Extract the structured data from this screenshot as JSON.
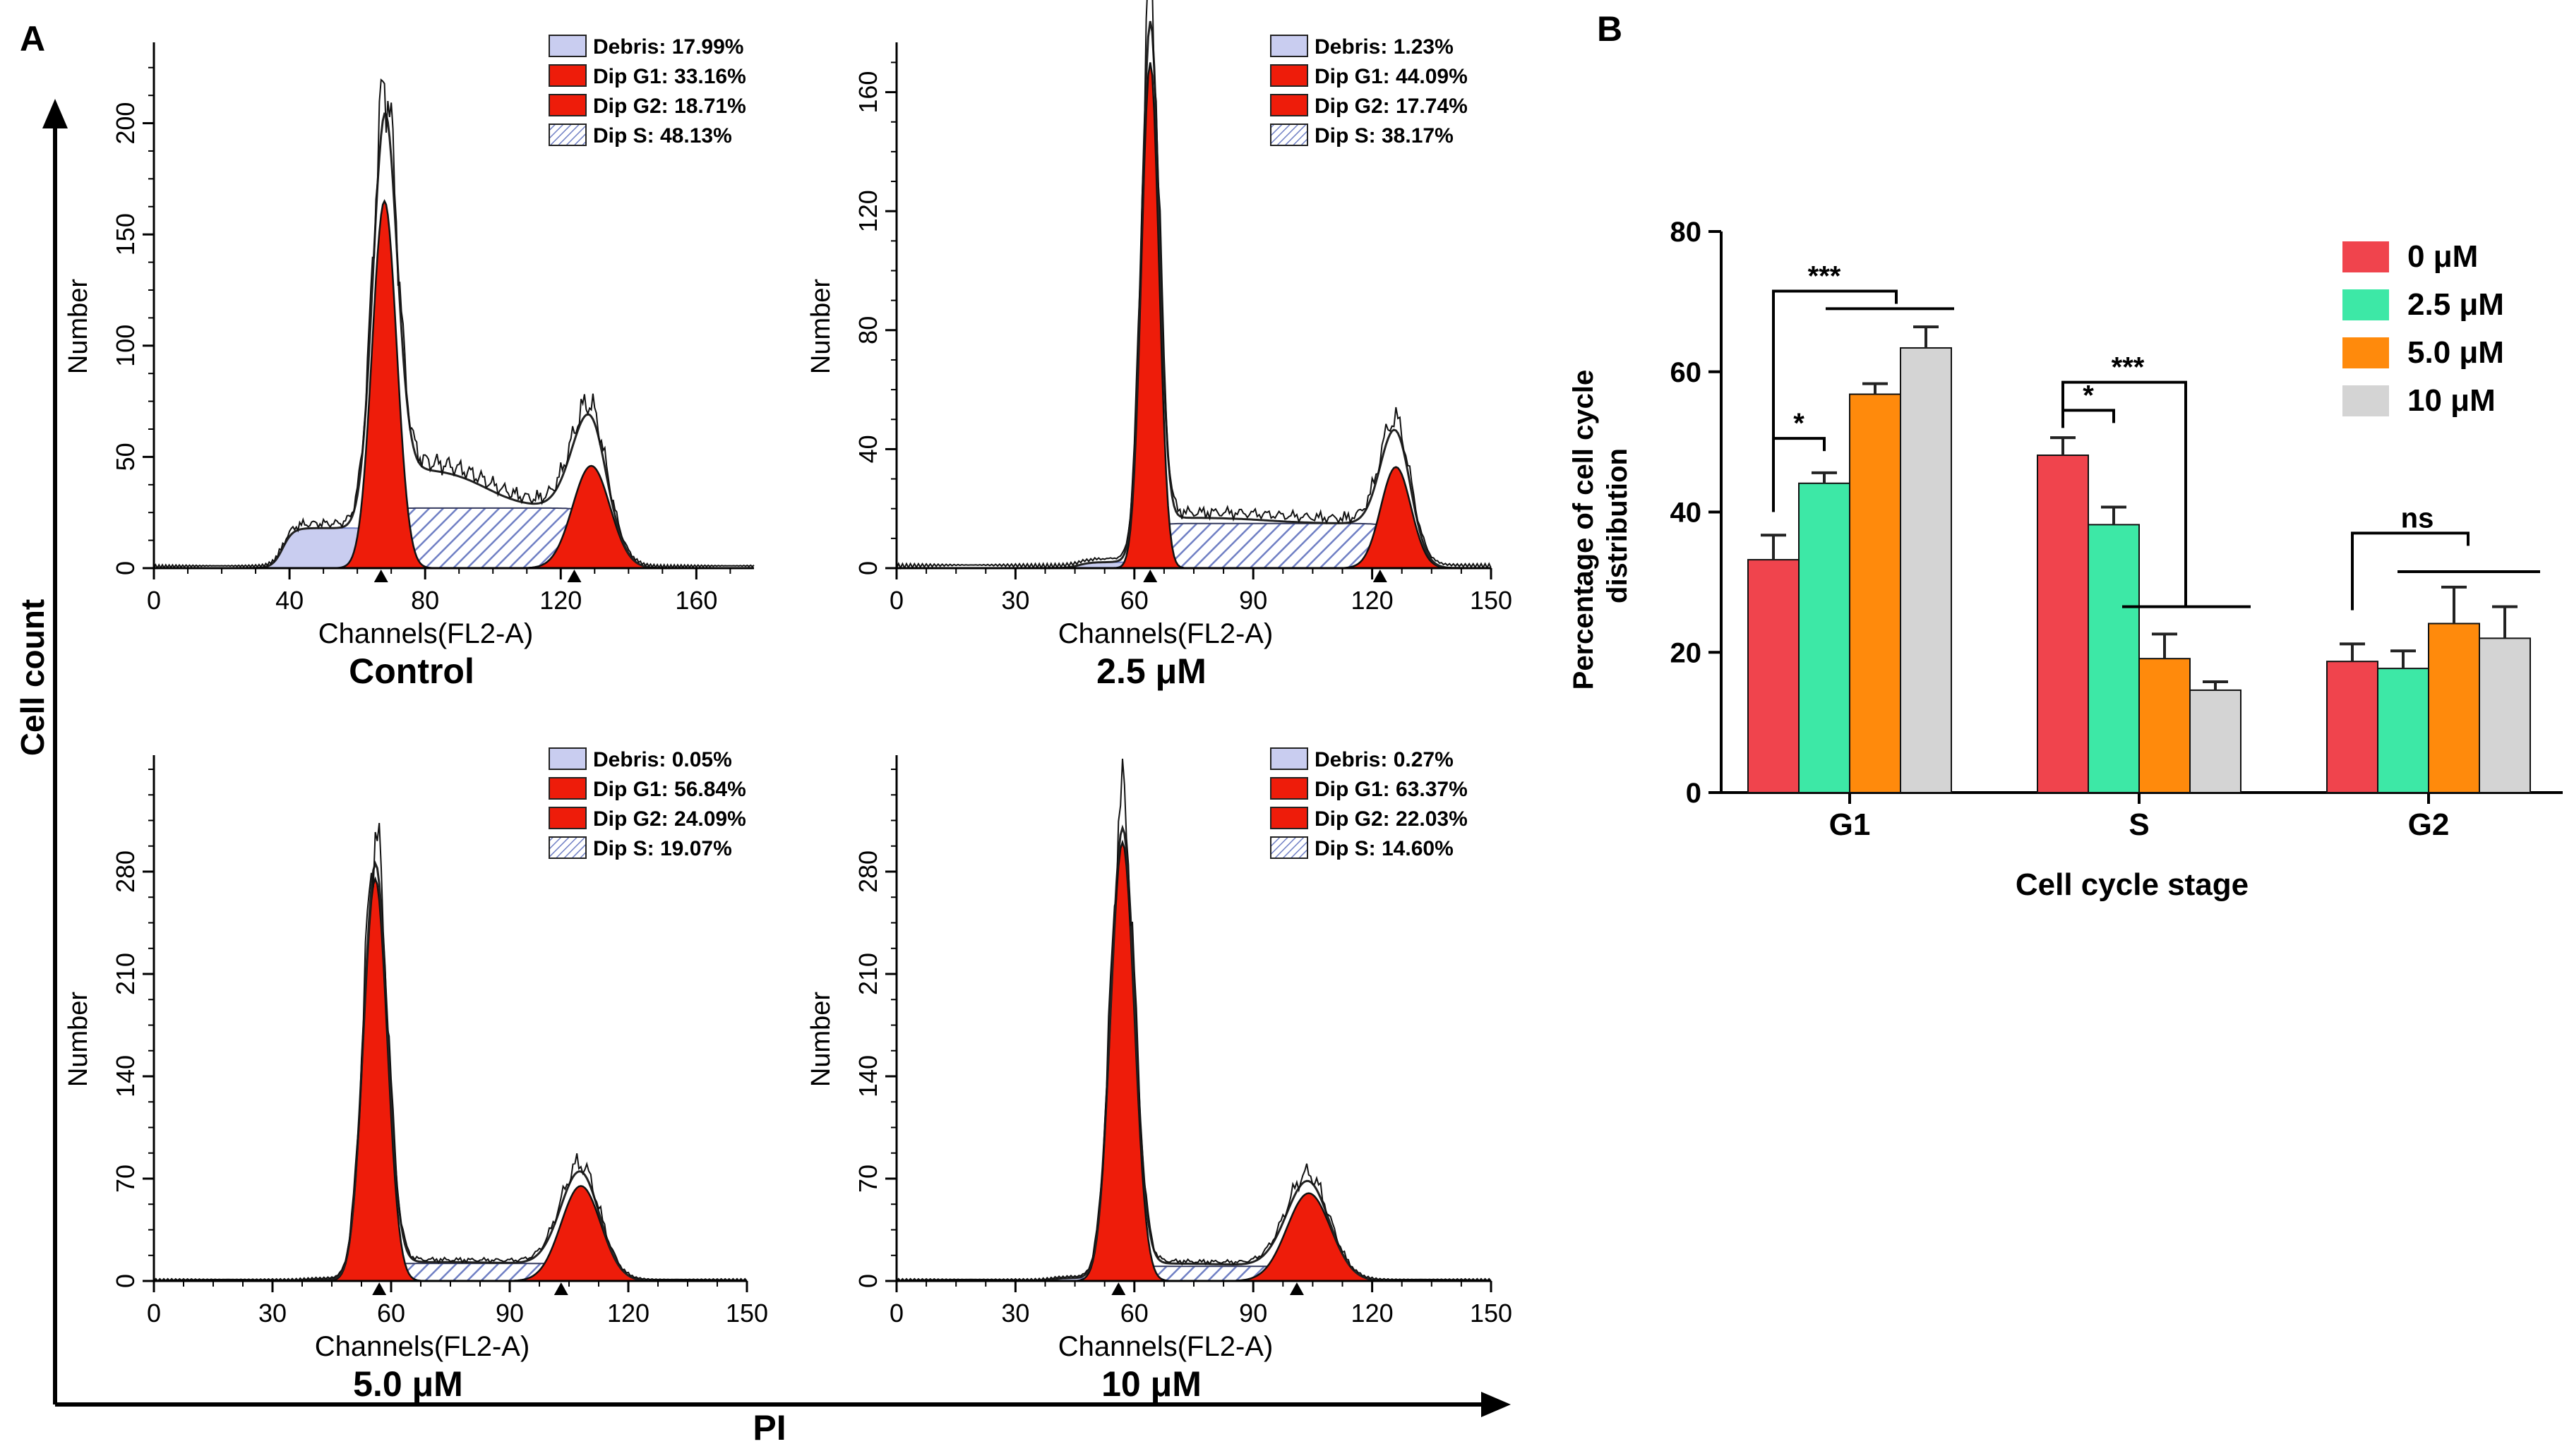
{
  "panels": {
    "a_label": "A",
    "b_label": "B",
    "outer_ylabel": "Cell count",
    "outer_xlabel": "PI"
  },
  "histograms": [
    {
      "caption": "Control",
      "xlabel": "Channels(FL2-A)",
      "ylabel": "Number",
      "xticks": [
        0,
        40,
        80,
        120,
        160
      ],
      "xlim": [
        0,
        177
      ],
      "yticks": [
        0,
        50,
        100,
        150,
        200
      ],
      "ylim": [
        0,
        230
      ],
      "g1_peak": 68,
      "g1_height": 165,
      "g1_width": 3.6,
      "g2_peak": 129,
      "g2_height": 46,
      "g2_width": 5.5,
      "s_level": 27,
      "debris_level": 18,
      "markers": [
        67,
        124
      ],
      "legend": [
        {
          "kind": "debris",
          "label": "Debris: 17.99%"
        },
        {
          "kind": "g1",
          "label": "Dip G1: 33.16%"
        },
        {
          "kind": "g2",
          "label": "Dip G2: 18.71%"
        },
        {
          "kind": "s",
          "label": "Dip S: 48.13%"
        }
      ]
    },
    {
      "caption": "2.5 μM",
      "xlabel": "Channels(FL2-A)",
      "ylabel": "Number",
      "xticks": [
        0,
        30,
        60,
        90,
        120,
        150
      ],
      "xlim": [
        0,
        150
      ],
      "yticks": [
        0,
        40,
        80,
        120,
        160
      ],
      "ylim": [
        0,
        172
      ],
      "g1_peak": 64,
      "g1_height": 170,
      "g1_width": 2.2,
      "g2_peak": 126,
      "g2_height": 34,
      "g2_width": 3.8,
      "s_level": 15,
      "debris_level": 2,
      "markers": [
        64,
        122
      ],
      "legend": [
        {
          "kind": "debris",
          "label": "Debris: 1.23%"
        },
        {
          "kind": "g1",
          "label": "Dip G1: 44.09%"
        },
        {
          "kind": "g2",
          "label": "Dip G2: 17.74%"
        },
        {
          "kind": "s",
          "label": "Dip S: 38.17%"
        }
      ]
    },
    {
      "caption": "5.0 μM",
      "xlabel": "Channels(FL2-A)",
      "ylabel": "Number",
      "xticks": [
        0,
        30,
        60,
        90,
        120,
        150
      ],
      "xlim": [
        0,
        150
      ],
      "yticks": [
        0,
        70,
        140,
        210,
        280
      ],
      "ylim": [
        0,
        350
      ],
      "g1_peak": 56,
      "g1_height": 275,
      "g1_width": 3.0,
      "g2_peak": 108,
      "g2_height": 65,
      "g2_width": 5.0,
      "s_level": 12,
      "debris_level": 1,
      "markers": [
        57,
        103
      ],
      "legend": [
        {
          "kind": "debris",
          "label": "Debris: 0.05%"
        },
        {
          "kind": "g1",
          "label": "Dip G1: 56.84%"
        },
        {
          "kind": "g2",
          "label": "Dip G2: 24.09%"
        },
        {
          "kind": "s",
          "label": "Dip S: 19.07%"
        }
      ]
    },
    {
      "caption": "10 μM",
      "xlabel": "Channels(FL2-A)",
      "ylabel": "Number",
      "xticks": [
        0,
        30,
        60,
        90,
        120,
        150
      ],
      "xlim": [
        0,
        150
      ],
      "yticks": [
        0,
        70,
        140,
        210,
        280
      ],
      "ylim": [
        0,
        350
      ],
      "g1_peak": 57,
      "g1_height": 300,
      "g1_width": 3.0,
      "g2_peak": 104,
      "g2_height": 60,
      "g2_width": 5.5,
      "s_level": 10,
      "debris_level": 2,
      "markers": [
        56,
        101
      ],
      "legend": [
        {
          "kind": "debris",
          "label": "Debris: 0.27%"
        },
        {
          "kind": "g1",
          "label": "Dip G1: 63.37%"
        },
        {
          "kind": "g2",
          "label": "Dip G2: 22.03%"
        },
        {
          "kind": "s",
          "label": "Dip S: 14.60%"
        }
      ]
    }
  ],
  "chart_data": {
    "type": "bar",
    "title": "",
    "xlabel": "Cell cycle stage",
    "ylabel": "Percentage of cell cycle distribution",
    "ylim": [
      0,
      80
    ],
    "yticks": [
      0,
      20,
      40,
      60,
      80
    ],
    "categories": [
      "G1",
      "S",
      "G2"
    ],
    "series": [
      {
        "name": "0 μM",
        "color": "#f0444d",
        "values": [
          33.2,
          48.1,
          18.7
        ],
        "errors": [
          3.5,
          2.5,
          2.5
        ]
      },
      {
        "name": "2.5 μM",
        "color": "#3de8a6",
        "values": [
          44.1,
          38.2,
          17.7
        ],
        "errors": [
          1.5,
          2.5,
          2.5
        ]
      },
      {
        "name": "5.0 μM",
        "color": "#ff8a0c",
        "values": [
          56.8,
          19.1,
          24.1
        ],
        "errors": [
          1.5,
          3.5,
          5.2
        ]
      },
      {
        "name": "10 μM",
        "color": "#d4d4d4",
        "values": [
          63.4,
          14.6,
          22.0
        ],
        "errors": [
          3.0,
          1.2,
          4.5
        ]
      }
    ],
    "annotations": [
      {
        "category": "G1",
        "text": "***"
      },
      {
        "category": "G1",
        "text": "*"
      },
      {
        "category": "S",
        "text": "***"
      },
      {
        "category": "S",
        "text": "*"
      },
      {
        "category": "G2",
        "text": "ns"
      }
    ],
    "legend_position": "top-right",
    "grid": false
  }
}
